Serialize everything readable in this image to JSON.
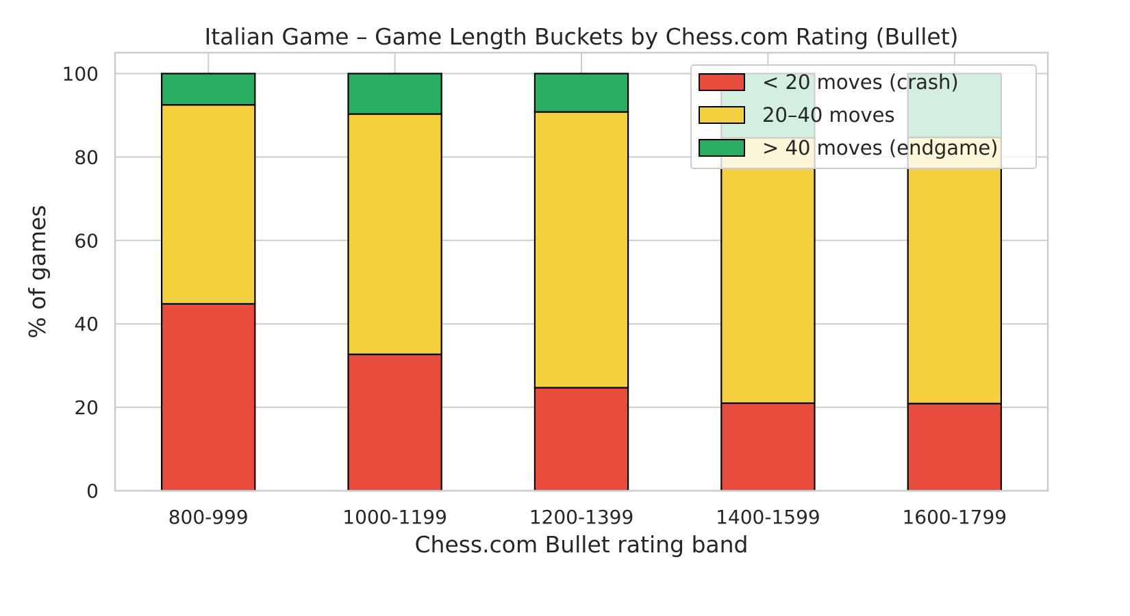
{
  "chart_data": {
    "type": "bar",
    "stacked": true,
    "title": "Italian Game – Game Length Buckets by Chess.com Rating (Bullet)",
    "xlabel": "Chess.com Bullet rating band",
    "ylabel": "% of games",
    "ylim": [
      0,
      105
    ],
    "yticks": [
      0,
      20,
      40,
      60,
      80,
      100
    ],
    "grid": true,
    "legend_position": "top-right",
    "categories": [
      "800-999",
      "1000-1199",
      "1200-1399",
      "1400-1599",
      "1600-1799"
    ],
    "series": [
      {
        "name": "< 20 moves (crash)",
        "color": "#e74c3c",
        "values": [
          44.8,
          32.7,
          24.7,
          21.0,
          20.9
        ]
      },
      {
        "name": "20–40 moves",
        "color": "#f4d03f",
        "values": [
          47.7,
          57.6,
          66.1,
          63.6,
          63.8
        ]
      },
      {
        "name": "> 40 moves (endgame)",
        "color": "#27ae60",
        "values": [
          7.5,
          9.7,
          9.2,
          15.4,
          15.3
        ]
      }
    ]
  }
}
